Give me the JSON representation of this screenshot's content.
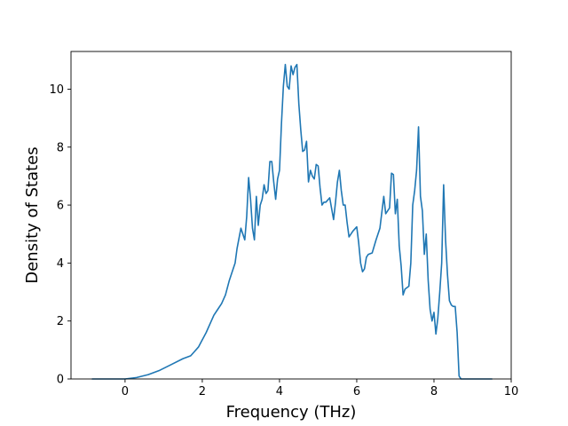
{
  "chart_data": {
    "type": "line",
    "title": "",
    "xlabel": "Frequency (THz)",
    "ylabel": "Density of States",
    "xlim": [
      -1.4,
      10.0
    ],
    "ylim": [
      0,
      11.3
    ],
    "xticks": [
      0,
      2,
      4,
      6,
      8,
      10
    ],
    "yticks": [
      0,
      2,
      4,
      6,
      8,
      10
    ],
    "grid": false,
    "line_color": "#1f77b4",
    "series": [
      {
        "x": [
          -0.85,
          0.0,
          0.3,
          0.6,
          0.9,
          1.2,
          1.5,
          1.7,
          1.8,
          1.9,
          2.0,
          2.1,
          2.2,
          2.3,
          2.4,
          2.5,
          2.6,
          2.7,
          2.8,
          2.85,
          2.9,
          3.0,
          3.1,
          3.15,
          3.2,
          3.25,
          3.3,
          3.35,
          3.4,
          3.45,
          3.5,
          3.55,
          3.6,
          3.65,
          3.7,
          3.75,
          3.8,
          3.85,
          3.9,
          3.95,
          4.0,
          4.05,
          4.1,
          4.15,
          4.2,
          4.25,
          4.3,
          4.35,
          4.4,
          4.45,
          4.5,
          4.55,
          4.6,
          4.65,
          4.7,
          4.75,
          4.8,
          4.85,
          4.9,
          4.95,
          5.0,
          5.05,
          5.1,
          5.15,
          5.2,
          5.3,
          5.4,
          5.45,
          5.5,
          5.55,
          5.6,
          5.65,
          5.7,
          5.75,
          5.8,
          5.85,
          5.9,
          6.0,
          6.05,
          6.1,
          6.15,
          6.2,
          6.25,
          6.3,
          6.4,
          6.5,
          6.6,
          6.7,
          6.75,
          6.8,
          6.85,
          6.9,
          6.95,
          7.0,
          7.05,
          7.1,
          7.15,
          7.2,
          7.25,
          7.3,
          7.35,
          7.4,
          7.45,
          7.5,
          7.55,
          7.6,
          7.65,
          7.7,
          7.75,
          7.8,
          7.85,
          7.9,
          7.95,
          8.0,
          8.05,
          8.1,
          8.15,
          8.2,
          8.25,
          8.3,
          8.35,
          8.4,
          8.45,
          8.5,
          8.55,
          8.6,
          8.65,
          8.7,
          9.0,
          9.5
        ],
        "y": [
          0,
          0,
          0.05,
          0.15,
          0.3,
          0.5,
          0.7,
          0.8,
          0.95,
          1.1,
          1.35,
          1.6,
          1.9,
          2.2,
          2.4,
          2.6,
          2.9,
          3.4,
          3.8,
          4.0,
          4.5,
          5.2,
          4.8,
          5.6,
          6.95,
          6.2,
          5.2,
          4.8,
          6.3,
          5.3,
          6.0,
          6.2,
          6.7,
          6.4,
          6.5,
          7.5,
          7.5,
          6.8,
          6.2,
          6.9,
          7.2,
          8.8,
          10.1,
          10.85,
          10.1,
          10.0,
          10.8,
          10.5,
          10.75,
          10.85,
          9.5,
          8.6,
          7.85,
          7.9,
          8.2,
          6.8,
          7.2,
          7.0,
          6.9,
          7.4,
          7.35,
          6.6,
          6.0,
          6.1,
          6.1,
          6.25,
          5.5,
          6.1,
          6.8,
          7.2,
          6.5,
          6.0,
          6.0,
          5.4,
          4.9,
          5.0,
          5.1,
          5.25,
          4.7,
          4.0,
          3.7,
          3.8,
          4.2,
          4.3,
          4.35,
          4.8,
          5.2,
          6.3,
          5.7,
          5.8,
          5.9,
          7.1,
          7.05,
          5.7,
          6.2,
          4.6,
          3.9,
          2.9,
          3.1,
          3.15,
          3.2,
          4.0,
          6.0,
          6.5,
          7.2,
          8.7,
          6.3,
          5.8,
          4.3,
          5.0,
          3.4,
          2.4,
          2.0,
          2.3,
          1.55,
          2.1,
          3.0,
          4.0,
          6.7,
          4.8,
          3.6,
          2.7,
          2.55,
          2.5,
          2.5,
          1.6,
          0.1,
          0,
          0,
          0
        ]
      }
    ]
  }
}
